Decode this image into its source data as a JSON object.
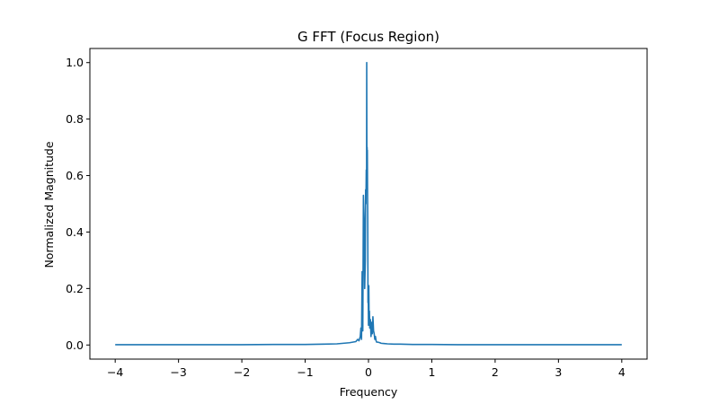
{
  "chart_data": {
    "type": "line",
    "title": "G FFT (Focus Region)",
    "xlabel": "Frequency",
    "ylabel": "Normalized Magnitude",
    "xlim": [
      -4.4,
      4.4
    ],
    "ylim": [
      -0.05,
      1.05
    ],
    "xticks": [
      -4,
      -3,
      -2,
      -1,
      0,
      1,
      2,
      3,
      4
    ],
    "xtick_labels": [
      "−4",
      "−3",
      "−2",
      "−1",
      "0",
      "1",
      "2",
      "3",
      "4"
    ],
    "yticks": [
      0.0,
      0.2,
      0.4,
      0.6,
      0.8,
      1.0
    ],
    "ytick_labels": [
      "0.0",
      "0.2",
      "0.4",
      "0.6",
      "0.8",
      "1.0"
    ],
    "grid": false,
    "legend": "none",
    "line_color": "#1f77b4",
    "series": [
      {
        "x": [
          -4.0,
          -3.5,
          -3.0,
          -2.5,
          -2.0,
          -1.5,
          -1.0,
          -0.7,
          -0.5,
          -0.4,
          -0.3,
          -0.25,
          -0.2,
          -0.17,
          -0.15,
          -0.13,
          -0.12,
          -0.11,
          -0.1,
          -0.095,
          -0.09,
          -0.08,
          -0.07,
          -0.06,
          -0.05,
          -0.045,
          -0.04,
          -0.035,
          -0.03,
          -0.028,
          -0.025,
          -0.022,
          -0.02,
          -0.018,
          -0.015,
          -0.012,
          -0.01,
          -0.008,
          -0.005,
          0.0,
          0.005,
          0.01,
          0.015,
          0.02,
          0.03,
          0.04,
          0.05,
          0.06,
          0.07,
          0.08,
          0.09,
          0.1,
          0.11,
          0.12,
          0.13,
          0.15,
          0.18,
          0.2,
          0.25,
          0.3,
          0.4,
          0.5,
          0.7,
          1.0,
          1.5,
          2.0,
          2.5,
          3.0,
          3.5,
          4.0
        ],
        "y": [
          0.001,
          0.001,
          0.001,
          0.001,
          0.001,
          0.002,
          0.002,
          0.003,
          0.004,
          0.006,
          0.008,
          0.01,
          0.012,
          0.02,
          0.015,
          0.03,
          0.06,
          0.02,
          0.26,
          0.24,
          0.05,
          0.53,
          0.45,
          0.2,
          0.3,
          0.55,
          0.5,
          0.62,
          0.58,
          1.0,
          0.58,
          0.7,
          0.6,
          0.69,
          0.55,
          0.45,
          0.3,
          0.15,
          0.2,
          0.07,
          0.21,
          0.09,
          0.12,
          0.06,
          0.09,
          0.03,
          0.08,
          0.04,
          0.1,
          0.05,
          0.04,
          0.02,
          0.03,
          0.015,
          0.01,
          0.01,
          0.008,
          0.006,
          0.005,
          0.004,
          0.003,
          0.003,
          0.002,
          0.002,
          0.001,
          0.001,
          0.001,
          0.001,
          0.001,
          0.001
        ]
      }
    ]
  }
}
